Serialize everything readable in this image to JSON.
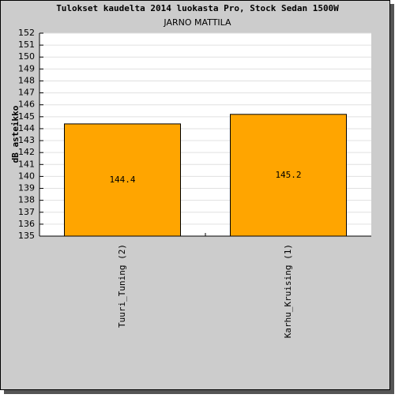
{
  "chart_data": {
    "type": "bar",
    "title": "Tulokset kaudelta 2014 luokasta Pro, Stock Sedan 1500W",
    "subtitle": "JARNO MATTILA",
    "y_label": "dB asteikko",
    "categories": [
      "Tuuri_Tuning (2)",
      "Karhu_Kruising (1)"
    ],
    "values": [
      144.4,
      145.2
    ],
    "color": "#ffa500",
    "ylim": [
      135,
      152
    ],
    "yticks": [
      135,
      136,
      137,
      138,
      139,
      140,
      141,
      142,
      143,
      144,
      145,
      146,
      147,
      148,
      149,
      150,
      151,
      152
    ],
    "grid": true
  }
}
